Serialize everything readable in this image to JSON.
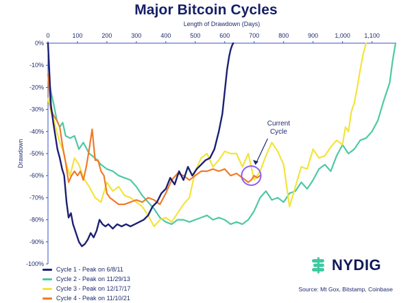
{
  "page": {
    "title": "Major Bitcoin Cycles",
    "source": "Source: Mt Gox, Bitstamp, Coinbase",
    "logo_text": "NYDIG",
    "annotation": "Current\nCycle",
    "legend_labels": [
      "Cycle 1 - Peak on 6/8/11",
      "Cycle 2 - Peak on 11/29/13",
      "Cycle 3 - Peak on 12/17/17",
      "Cycle 4 - Peak on 11/10/21"
    ]
  },
  "chart_data": {
    "type": "line",
    "title": "Major Bitcoin Cycles",
    "xlabel": "Length of Drawdown (Days)",
    "ylabel": "Drawdown",
    "xlim": [
      0,
      1180
    ],
    "ylim": [
      -100,
      0
    ],
    "x_ticks": [
      0,
      100,
      200,
      300,
      400,
      500,
      600,
      700,
      800,
      900,
      1000,
      1100
    ],
    "x_tick_labels": [
      "0",
      "100",
      "200",
      "300",
      "400",
      "500",
      "600",
      "700",
      "800",
      "900",
      "1,000",
      "1,100"
    ],
    "y_ticks": [
      0,
      -10,
      -20,
      -30,
      -40,
      -50,
      -60,
      -70,
      -80,
      -90,
      -100
    ],
    "y_tick_labels": [
      "0%",
      "-10%",
      "-20%",
      "-30%",
      "-40%",
      "-50%",
      "-60%",
      "-70%",
      "-80%",
      "-90%",
      "-100%"
    ],
    "x_axis_position": "top",
    "grid": false,
    "legend_position": "bottom-left",
    "annotations": [
      {
        "text": "Current\nCycle",
        "target_x": 690,
        "target_y": -60
      }
    ],
    "series": [
      {
        "name": "Cycle 1 - Peak on 6/8/11",
        "color": "#1b1f73",
        "x": [
          0,
          5,
          10,
          18,
          25,
          32,
          40,
          48,
          55,
          63,
          70,
          78,
          85,
          95,
          105,
          115,
          125,
          135,
          145,
          155,
          165,
          175,
          185,
          195,
          205,
          220,
          235,
          250,
          265,
          280,
          295,
          310,
          325,
          340,
          355,
          370,
          385,
          400,
          415,
          430,
          445,
          460,
          475,
          490,
          505,
          520,
          535,
          550,
          565,
          580,
          592,
          600,
          608,
          615,
          620,
          625,
          629
        ],
        "y": [
          0,
          -14,
          -28,
          -36,
          -42,
          -48,
          -52,
          -57,
          -60,
          -72,
          -79,
          -77,
          -82,
          -86,
          -90,
          -92,
          -91,
          -89,
          -86,
          -88,
          -85,
          -80,
          -82,
          -83,
          -82,
          -84,
          -82,
          -83,
          -82,
          -83,
          -82,
          -81,
          -80,
          -78,
          -74,
          -72,
          -68,
          -66,
          -61,
          -64,
          -58,
          -62,
          -56,
          -60,
          -57,
          -55,
          -53,
          -52,
          -48,
          -40,
          -32,
          -22,
          -12,
          -6,
          -3,
          -1,
          0
        ]
      },
      {
        "name": "Cycle 2 - Peak on 11/29/13",
        "color": "#4cc9a3",
        "x": [
          0,
          10,
          20,
          30,
          40,
          50,
          60,
          75,
          90,
          105,
          120,
          140,
          160,
          180,
          200,
          220,
          240,
          260,
          280,
          300,
          320,
          340,
          360,
          380,
          400,
          420,
          440,
          460,
          480,
          500,
          520,
          540,
          560,
          580,
          600,
          620,
          640,
          660,
          680,
          700,
          720,
          740,
          760,
          780,
          800,
          820,
          840,
          860,
          880,
          900,
          920,
          940,
          960,
          980,
          1000,
          1020,
          1040,
          1060,
          1080,
          1100,
          1120,
          1140,
          1160,
          1170,
          1180
        ],
        "y": [
          -14,
          -22,
          -28,
          -35,
          -38,
          -36,
          -42,
          -43,
          -42,
          -48,
          -45,
          -50,
          -52,
          -55,
          -57,
          -58,
          -60,
          -61,
          -62,
          -65,
          -69,
          -72,
          -75,
          -79,
          -81,
          -82,
          -80,
          -80,
          -81,
          -80,
          -79,
          -78,
          -80,
          -79,
          -80,
          -82,
          -81,
          -82,
          -80,
          -76,
          -70,
          -67,
          -71,
          -70,
          -72,
          -68,
          -67,
          -63,
          -66,
          -62,
          -57,
          -55,
          -58,
          -51,
          -46,
          -50,
          -48,
          -44,
          -43,
          -40,
          -35,
          -26,
          -18,
          -8,
          0
        ]
      },
      {
        "name": "Cycle 3 - Peak on 12/17/17",
        "color": "#f2e43a",
        "x": [
          0,
          10,
          20,
          30,
          40,
          50,
          60,
          75,
          90,
          105,
          120,
          140,
          160,
          180,
          200,
          220,
          240,
          260,
          280,
          300,
          320,
          340,
          360,
          380,
          400,
          420,
          440,
          460,
          480,
          500,
          520,
          540,
          560,
          580,
          600,
          620,
          640,
          660,
          680,
          700,
          720,
          740,
          760,
          780,
          800,
          820,
          840,
          860,
          880,
          900,
          920,
          940,
          960,
          980,
          1000,
          1010,
          1020,
          1030,
          1040,
          1050,
          1060,
          1070,
          1080
        ],
        "y": [
          -25,
          -31,
          -35,
          -40,
          -45,
          -48,
          -54,
          -60,
          -52,
          -55,
          -61,
          -65,
          -70,
          -72,
          -63,
          -67,
          -65,
          -69,
          -70,
          -72,
          -74,
          -78,
          -83,
          -80,
          -79,
          -81,
          -77,
          -73,
          -70,
          -58,
          -52,
          -50,
          -56,
          -53,
          -49,
          -50,
          -50,
          -56,
          -50,
          -62,
          -58,
          -51,
          -45,
          -49,
          -55,
          -74,
          -65,
          -56,
          -57,
          -48,
          -52,
          -51,
          -47,
          -44,
          -46,
          -38,
          -40,
          -31,
          -27,
          -20,
          -12,
          -5,
          0
        ]
      },
      {
        "name": "Cycle 4 - Peak on 11/10/21",
        "color": "#f07a27",
        "x": [
          0,
          10,
          20,
          30,
          40,
          50,
          60,
          70,
          80,
          90,
          100,
          110,
          120,
          130,
          140,
          150,
          160,
          170,
          180,
          190,
          200,
          210,
          220,
          230,
          240,
          260,
          280,
          300,
          320,
          340,
          360,
          380,
          400,
          420,
          440,
          460,
          480,
          500,
          520,
          540,
          560,
          580,
          600,
          620,
          640,
          660,
          680,
          690,
          700,
          710,
          720
        ],
        "y": [
          -14,
          -30,
          -33,
          -35,
          -38,
          -47,
          -54,
          -63,
          -60,
          -58,
          -60,
          -58,
          -62,
          -56,
          -48,
          -39,
          -53,
          -53,
          -58,
          -60,
          -68,
          -70,
          -71,
          -72,
          -73,
          -73,
          -72,
          -71,
          -72,
          -70,
          -71,
          -73,
          -68,
          -62,
          -59,
          -60,
          -62,
          -60,
          -58,
          -58,
          -57,
          -58,
          -57,
          -60,
          -59,
          -61,
          -63,
          -62,
          -60,
          -61,
          -60
        ]
      }
    ]
  }
}
